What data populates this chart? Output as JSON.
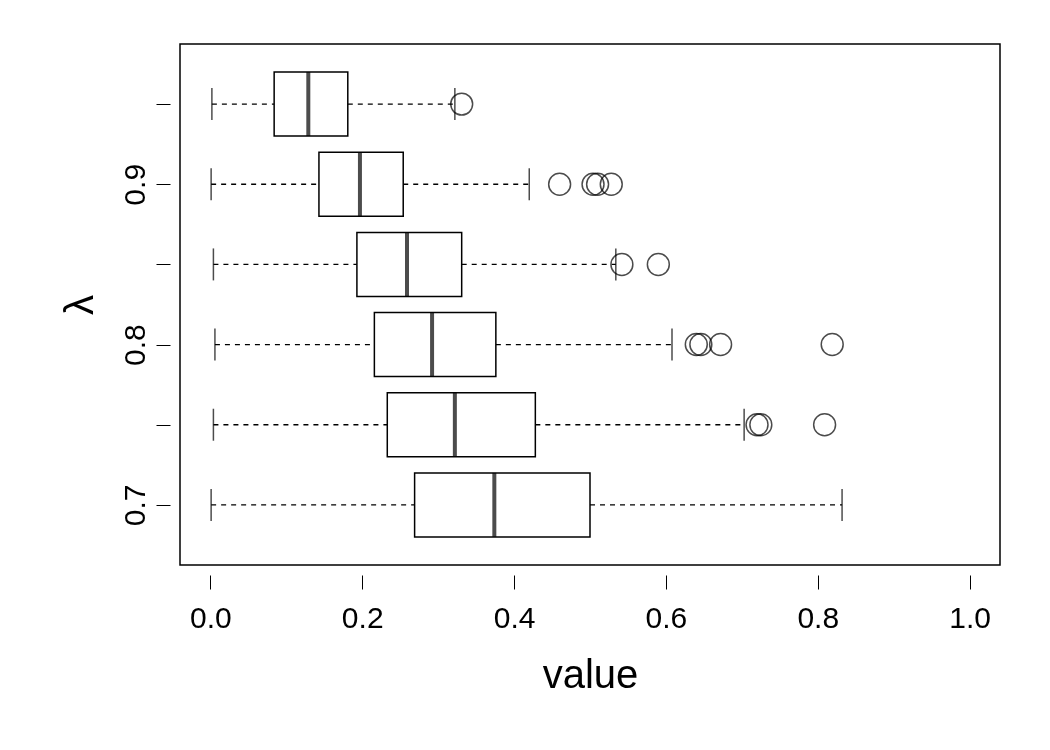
{
  "chart_data": {
    "type": "box",
    "orientation": "horizontal",
    "xlabel": "value",
    "ylabel": "λ",
    "categories": [
      null,
      "0.9",
      null,
      "0.8",
      null,
      "0.7"
    ],
    "boxes": [
      {
        "low": 0.002,
        "q1": 0.084,
        "median": 0.129,
        "q3": 0.181,
        "high": 0.322,
        "outliers": [
          0.331
        ]
      },
      {
        "low": 0.001,
        "q1": 0.143,
        "median": 0.197,
        "q3": 0.254,
        "high": 0.42,
        "outliers": [
          0.46,
          0.504,
          0.51,
          0.528
        ]
      },
      {
        "low": 0.004,
        "q1": 0.193,
        "median": 0.259,
        "q3": 0.331,
        "high": 0.534,
        "outliers": [
          0.542,
          0.59
        ]
      },
      {
        "low": 0.006,
        "q1": 0.216,
        "median": 0.292,
        "q3": 0.376,
        "high": 0.608,
        "outliers": [
          0.64,
          0.646,
          0.672,
          0.819
        ]
      },
      {
        "low": 0.004,
        "q1": 0.233,
        "median": 0.322,
        "q3": 0.428,
        "high": 0.703,
        "outliers": [
          0.72,
          0.725,
          0.809
        ]
      },
      {
        "low": 0.001,
        "q1": 0.269,
        "median": 0.374,
        "q3": 0.5,
        "high": 0.832
      }
    ],
    "xlim": [
      -0.04,
      1.04
    ],
    "xticks": [
      {
        "value": 0,
        "label": "0.0"
      },
      {
        "value": 0.2,
        "label": "0.2"
      },
      {
        "value": 0.4,
        "label": "0.4"
      },
      {
        "value": 0.6,
        "label": "0.6"
      },
      {
        "value": 0.8,
        "label": "0.8"
      },
      {
        "value": 1,
        "label": "1.0"
      }
    ],
    "grid": false
  }
}
